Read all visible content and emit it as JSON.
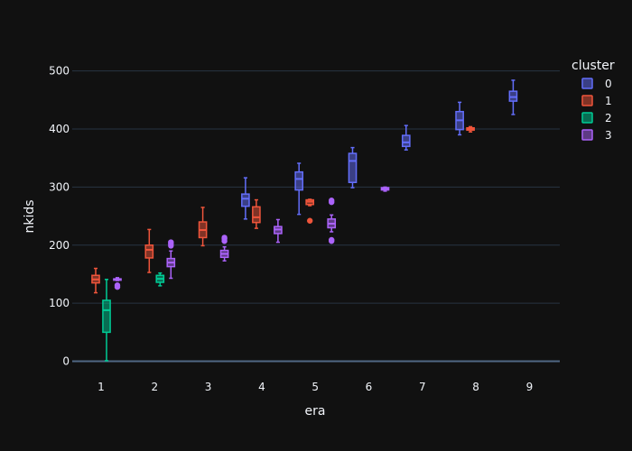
{
  "colors": {
    "background": "#111111",
    "grid": "#283442",
    "text": "#f2f5fa",
    "cluster0": "#636efa",
    "cluster1": "#EF553B",
    "cluster2": "#00cc96",
    "cluster3": "#ab63fa"
  },
  "chart_data": {
    "type": "box",
    "xlabel": "era",
    "ylabel": "nkids",
    "ylim": [
      -10,
      560
    ],
    "yticks": [
      0,
      100,
      200,
      300,
      400,
      500
    ],
    "categories": [
      1,
      2,
      3,
      4,
      5,
      6,
      7,
      8,
      9
    ],
    "legend": {
      "title": "cluster",
      "position": "top-right"
    },
    "grid": true,
    "series": [
      {
        "name": "0",
        "color": "#636efa",
        "boxes": [
          {
            "era": 4,
            "min": 245,
            "q1": 267,
            "median": 280,
            "q3": 288,
            "max": 316,
            "outliers": []
          },
          {
            "era": 5,
            "min": 253,
            "q1": 295,
            "median": 314,
            "q3": 326,
            "max": 341,
            "outliers": []
          },
          {
            "era": 6,
            "min": 299,
            "q1": 308,
            "median": 345,
            "q3": 358,
            "max": 368,
            "outliers": []
          },
          {
            "era": 7,
            "min": 364,
            "q1": 370,
            "median": 377,
            "q3": 389,
            "max": 406,
            "outliers": []
          },
          {
            "era": 8,
            "min": 390,
            "q1": 399,
            "median": 415,
            "q3": 430,
            "max": 446,
            "outliers": []
          },
          {
            "era": 9,
            "min": 425,
            "q1": 448,
            "median": 455,
            "q3": 465,
            "max": 484,
            "outliers": []
          }
        ]
      },
      {
        "name": "1",
        "color": "#EF553B",
        "boxes": [
          {
            "era": 1,
            "min": 118,
            "q1": 135,
            "median": 141,
            "q3": 148,
            "max": 160,
            "outliers": []
          },
          {
            "era": 2,
            "min": 153,
            "q1": 178,
            "median": 192,
            "q3": 200,
            "max": 227,
            "outliers": []
          },
          {
            "era": 3,
            "min": 199,
            "q1": 213,
            "median": 226,
            "q3": 240,
            "max": 265,
            "outliers": []
          },
          {
            "era": 4,
            "min": 229,
            "q1": 239,
            "median": 248,
            "q3": 266,
            "max": 278,
            "outliers": []
          },
          {
            "era": 5,
            "min": 268,
            "q1": 270,
            "median": 275,
            "q3": 278,
            "max": 279,
            "outliers": [
              242
            ]
          },
          {
            "era": 8,
            "min": 395,
            "q1": 398,
            "median": 400,
            "q3": 402,
            "max": 404,
            "outliers": []
          }
        ]
      },
      {
        "name": "2",
        "color": "#00cc96",
        "boxes": [
          {
            "era": 1,
            "min": 1,
            "q1": 50,
            "median": 88,
            "q3": 105,
            "max": 141,
            "outliers": []
          },
          {
            "era": 2,
            "min": 130,
            "q1": 136,
            "median": 142,
            "q3": 148,
            "max": 152,
            "outliers": []
          }
        ]
      },
      {
        "name": "3",
        "color": "#ab63fa",
        "boxes": [
          {
            "era": 1,
            "min": 139,
            "q1": 140,
            "median": 141,
            "q3": 142,
            "max": 144,
            "outliers": [
              128,
              131
            ]
          },
          {
            "era": 2,
            "min": 143,
            "q1": 163,
            "median": 170,
            "q3": 177,
            "max": 190,
            "outliers": [
              199,
              202,
              205
            ]
          },
          {
            "era": 3,
            "min": 173,
            "q1": 179,
            "median": 185,
            "q3": 191,
            "max": 197,
            "outliers": [
              207,
              211,
              213
            ]
          },
          {
            "era": 4,
            "min": 205,
            "q1": 220,
            "median": 227,
            "q3": 232,
            "max": 244,
            "outliers": []
          },
          {
            "era": 5,
            "min": 223,
            "q1": 230,
            "median": 237,
            "q3": 245,
            "max": 252,
            "outliers": [
              207,
              209,
              274,
              277
            ]
          },
          {
            "era": 6,
            "min": 293,
            "q1": 295,
            "median": 297,
            "q3": 299,
            "max": 300,
            "outliers": []
          }
        ]
      }
    ]
  }
}
